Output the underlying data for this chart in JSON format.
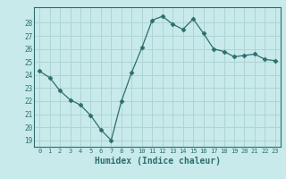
{
  "x": [
    0,
    1,
    2,
    3,
    4,
    5,
    6,
    7,
    8,
    9,
    10,
    11,
    12,
    13,
    14,
    15,
    16,
    17,
    18,
    19,
    20,
    21,
    22,
    23
  ],
  "y": [
    24.3,
    23.8,
    22.8,
    22.1,
    21.7,
    20.9,
    19.8,
    19.0,
    22.0,
    24.2,
    26.1,
    28.2,
    28.5,
    27.9,
    27.5,
    28.3,
    27.2,
    26.0,
    25.8,
    25.4,
    25.5,
    25.6,
    25.2,
    25.1
  ],
  "xlabel": "Humidex (Indice chaleur)",
  "ylim": [
    18.5,
    29.2
  ],
  "xlim": [
    -0.5,
    23.5
  ],
  "yticks": [
    19,
    20,
    21,
    22,
    23,
    24,
    25,
    26,
    27,
    28
  ],
  "xticks": [
    0,
    1,
    2,
    3,
    4,
    5,
    6,
    7,
    8,
    9,
    10,
    11,
    12,
    13,
    14,
    15,
    16,
    17,
    18,
    19,
    20,
    21,
    22,
    23
  ],
  "line_color": "#2d6e6e",
  "marker": "D",
  "marker_size": 2.5,
  "bg_color": "#c8eaea",
  "grid_color": "#afd4d4"
}
